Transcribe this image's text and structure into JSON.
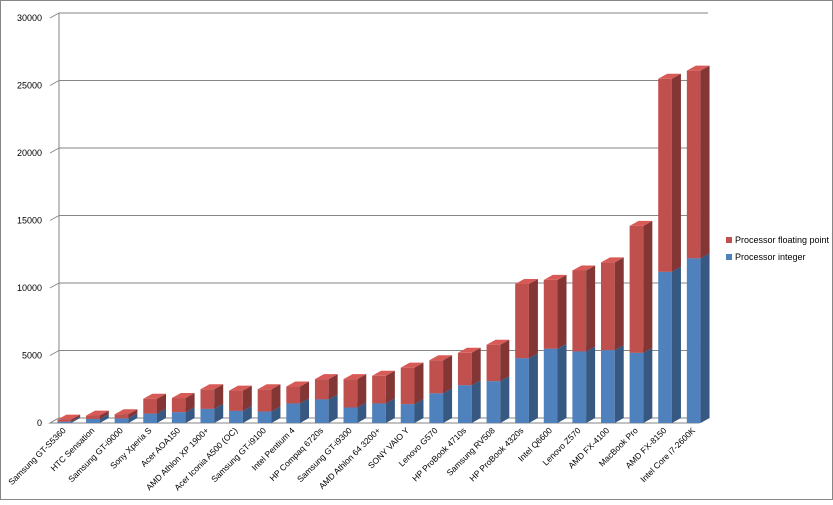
{
  "chart_data": {
    "type": "bar",
    "stacked": true,
    "categories": [
      "Samsung GT-S5360",
      "HTC Sensation",
      "Samsung GT-i9000",
      "Sony Xperia S",
      "Acer AOA150",
      "AMD Athlon XP 1900+",
      "Acer Iconia A500 (OC)",
      "Samsung GT-i9100",
      "Intel Pentium 4",
      "HP Compaq 6720s",
      "Samsung GT-i9300",
      "AMD Athlon 64 3200+",
      "SONY VAIO Y",
      "Lenovo G570",
      "HP ProBook 4710s",
      "Samsung RV508",
      "HP ProBook 4320s",
      "Intel Q6600",
      "Lenovo Z570",
      "AMD FX-4100",
      "MacBook Pro",
      "AMD FX-8150",
      "Intel Core i7-2600K"
    ],
    "series": [
      {
        "name": "Processor integer",
        "color": "#4f81bd",
        "values": [
          100,
          300,
          350,
          700,
          800,
          1050,
          900,
          850,
          1450,
          1750,
          1150,
          1450,
          1400,
          2200,
          2800,
          3100,
          4800,
          5500,
          5300,
          5400,
          5200,
          11200,
          12200
        ]
      },
      {
        "name": "Processor floating point",
        "color": "#c0504d",
        "values": [
          150,
          250,
          300,
          1100,
          1050,
          1450,
          1500,
          1650,
          1250,
          1500,
          2100,
          2050,
          2700,
          2450,
          2400,
          2700,
          5500,
          5100,
          6000,
          6500,
          9400,
          14300,
          13900
        ]
      }
    ],
    "legend_order": [
      1,
      0
    ],
    "ylim": [
      0,
      30000
    ],
    "yticks": [
      0,
      5000,
      10000,
      15000,
      20000,
      25000,
      30000
    ],
    "grid": true,
    "legend": "right",
    "title": "",
    "xlabel": "",
    "ylabel": ""
  }
}
